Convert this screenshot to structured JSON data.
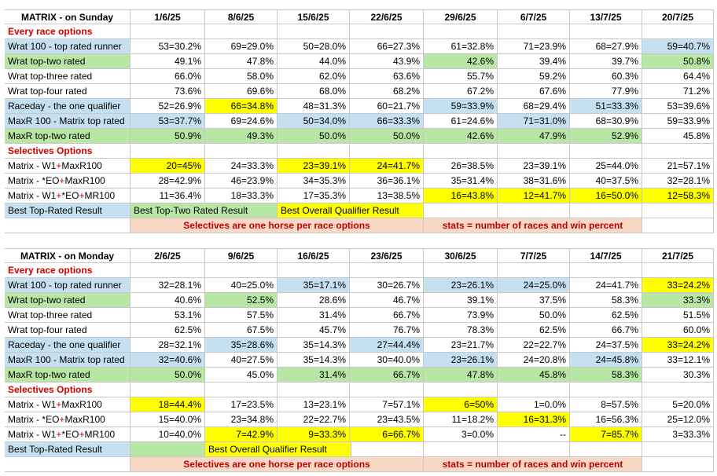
{
  "colors": {
    "blue": "#c5e0f0",
    "green": "#b8e6a4",
    "yellow": "#ffff00",
    "peach": "#f8d9c6",
    "red": "#d00000"
  },
  "sunday": {
    "title": "MATRIX - on Sunday",
    "dates": [
      "1/6/25",
      "8/6/25",
      "15/6/25",
      "22/6/25",
      "29/6/25",
      "6/7/25",
      "13/7/25",
      "20/7/25"
    ],
    "section1": "Every race options",
    "rows": [
      {
        "label": "Wrat 100 - top rated runner",
        "lc": "blue",
        "values": [
          "53=30.2%",
          "69=29.0%",
          "50=28.0%",
          "66=27.3%",
          "61=32.8%",
          "71=23.9%",
          "68=27.9%",
          "59=40.7%"
        ],
        "colors": [
          "",
          "",
          "",
          "",
          "",
          "",
          "",
          "blue"
        ]
      },
      {
        "label": "Wrat top-two rated",
        "lc": "green",
        "values": [
          "49.1%",
          "47.8%",
          "44.0%",
          "43.9%",
          "42.6%",
          "39.4%",
          "39.7%",
          "50.8%"
        ],
        "colors": [
          "",
          "",
          "",
          "",
          "green",
          "",
          "",
          "green"
        ]
      },
      {
        "label": "Wrat top-three rated",
        "lc": "",
        "values": [
          "66.0%",
          "58.0%",
          "62.0%",
          "63.6%",
          "55.7%",
          "59.2%",
          "60.3%",
          "64.4%"
        ],
        "colors": [
          "",
          "",
          "",
          "",
          "",
          "",
          "",
          ""
        ]
      },
      {
        "label": "Wrat top-four rated",
        "lc": "",
        "values": [
          "73.6%",
          "69.6%",
          "68.0%",
          "68.2%",
          "67.2%",
          "67.6%",
          "77.9%",
          "71.2%"
        ],
        "colors": [
          "",
          "",
          "",
          "",
          "",
          "",
          "",
          ""
        ]
      },
      {
        "label": "Raceday - the one qualifier",
        "lc": "blue",
        "values": [
          "52=26.9%",
          "66=34.8%",
          "48=31.3%",
          "60=21.7%",
          "59=33.9%",
          "68=29.4%",
          "51=33.3%",
          "53=39.6%"
        ],
        "colors": [
          "",
          "yellow",
          "",
          "",
          "blue",
          "",
          "blue",
          ""
        ]
      },
      {
        "label": "MaxR 100 - Matrix top rated",
        "lc": "blue",
        "values": [
          "53=37.7%",
          "69=24.6%",
          "50=34.0%",
          "66=33.3%",
          "61=24.6%",
          "71=31.0%",
          "68=30.9%",
          "59=33.9%"
        ],
        "colors": [
          "blue",
          "",
          "blue",
          "blue",
          "",
          "blue",
          "",
          ""
        ]
      },
      {
        "label": "MaxR top-two rated",
        "lc": "green",
        "values": [
          "50.9%",
          "49.3%",
          "50.0%",
          "50.0%",
          "42.6%",
          "47.9%",
          "52.9%",
          "45.8%"
        ],
        "colors": [
          "green",
          "green",
          "green",
          "green",
          "green",
          "green",
          "green",
          ""
        ]
      }
    ],
    "section2": "Selectives Options",
    "sel_rows": [
      {
        "label": "Matrix - W1+MaxR100",
        "values": [
          "20=45%",
          "24=33.3%",
          "23=39.1%",
          "24=41.7%",
          "26=38.5%",
          "23=39.1%",
          "25=44.0%",
          "21=57.1%"
        ],
        "colors": [
          "yellow",
          "",
          "yellow",
          "yellow",
          "",
          "",
          "",
          ""
        ]
      },
      {
        "label": "Matrix - *EO+MaxR100",
        "values": [
          "28=42.9%",
          "46=23.9%",
          "34=35.3%",
          "36=36.1%",
          "35=31.4%",
          "38=31.6%",
          "40=37.5%",
          "32=28.1%"
        ],
        "colors": [
          "",
          "",
          "",
          "",
          "",
          "",
          "",
          ""
        ]
      },
      {
        "label": "Matrix - W1+*EO+MR100",
        "values": [
          "11=36.4%",
          "18=33.3%",
          "17=35.3%",
          "13=38.5%",
          "16=43.8%",
          "12=41.7%",
          "16=50.0%",
          "12=58.3%"
        ],
        "colors": [
          "",
          "",
          "",
          "",
          "yellow",
          "yellow",
          "yellow",
          "yellow"
        ]
      }
    ],
    "legend": {
      "best_top_rated": "Best Top-Rated Result",
      "best_top_two": "Best Top-Two Rated Result",
      "best_overall": "Best Overall Qualifier Result"
    },
    "notes": {
      "selectives": "Selectives are one horse per race options",
      "stats": "stats = number of races and win percent"
    }
  },
  "monday": {
    "title": "MATRIX - on Monday",
    "dates": [
      "2/6/25",
      "9/6/25",
      "16/6/25",
      "23/6/25",
      "30/6/25",
      "7/7/25",
      "14/7/25",
      "21/7/25"
    ],
    "section1": "Every race options",
    "rows": [
      {
        "label": "Wrat 100 - top rated runner",
        "lc": "blue",
        "values": [
          "32=28.1%",
          "40=25.0%",
          "35=17.1%",
          "30=26.7%",
          "23=26.1%",
          "24=25.0%",
          "24=41.7%",
          "33=24.2%"
        ],
        "colors": [
          "",
          "",
          "blue",
          "",
          "blue",
          "blue",
          "",
          "yellow"
        ]
      },
      {
        "label": "Wrat top-two rated",
        "lc": "green",
        "values": [
          "40.6%",
          "52.5%",
          "28.6%",
          "46.7%",
          "39.1%",
          "37.5%",
          "58.3%",
          "33.3%"
        ],
        "colors": [
          "",
          "green",
          "",
          "",
          "",
          "",
          "",
          "green"
        ]
      },
      {
        "label": "Wrat top-three rated",
        "lc": "",
        "values": [
          "53.1%",
          "57.5%",
          "31.4%",
          "66.7%",
          "73.9%",
          "50.0%",
          "62.5%",
          "51.5%"
        ],
        "colors": [
          "",
          "",
          "",
          "",
          "",
          "",
          "",
          ""
        ]
      },
      {
        "label": "Wrat top-four rated",
        "lc": "",
        "values": [
          "62.5%",
          "67.5%",
          "45.7%",
          "76.7%",
          "78.3%",
          "62.5%",
          "66.7%",
          "60.0%"
        ],
        "colors": [
          "",
          "",
          "",
          "",
          "",
          "",
          "",
          ""
        ]
      },
      {
        "label": "Raceday - the one qualifier",
        "lc": "blue",
        "values": [
          "28=32.1%",
          "35=28.6%",
          "35=14.3%",
          "27=44.4%",
          "23=21.7%",
          "22=22.7%",
          "24=37.5%",
          "33=24.2%"
        ],
        "colors": [
          "",
          "blue",
          "",
          "blue",
          "",
          "",
          "",
          "yellow"
        ]
      },
      {
        "label": "MaxR 100 - Matrix top rated",
        "lc": "blue",
        "values": [
          "32=40.6%",
          "40=27.5%",
          "35=14.3%",
          "30=40.0%",
          "23=26.1%",
          "24=20.8%",
          "24=45.8%",
          "33=12.1%"
        ],
        "colors": [
          "blue",
          "",
          "",
          "",
          "blue",
          "",
          "blue",
          ""
        ]
      },
      {
        "label": "MaxR top-two rated",
        "lc": "green",
        "values": [
          "50.0%",
          "45.0%",
          "31.4%",
          "66.7%",
          "47.8%",
          "45.8%",
          "58.3%",
          "30.3%"
        ],
        "colors": [
          "green",
          "",
          "green",
          "green",
          "green",
          "green",
          "green",
          ""
        ]
      }
    ],
    "section2": "Selectives Options",
    "sel_rows": [
      {
        "label": "Matrix - W1+MaxR100",
        "values": [
          "18=44.4%",
          "17=23.5%",
          "13=23.1%",
          "7=57.1%",
          "6=50%",
          "1=0.0%",
          "8=57.5%",
          "5=20.0%"
        ],
        "colors": [
          "yellow",
          "",
          "",
          "",
          "yellow",
          "",
          "",
          ""
        ]
      },
      {
        "label": "Matrix - *EO+MaxR100",
        "values": [
          "15=40.0%",
          "23=34.8%",
          "22=22.7%",
          "23=43.5%",
          "11=18.2%",
          "16=31.3%",
          "16=56.3%",
          "25=12.0%"
        ],
        "colors": [
          "",
          "",
          "",
          "",
          "",
          "yellow",
          "",
          ""
        ]
      },
      {
        "label": "Matrix - W1+*EO+MR100",
        "values": [
          "10=40.0%",
          "7=42.9%",
          "9=33.3%",
          "6=66.7%",
          "3=0.0%",
          "--",
          "7=85.7%",
          "3=33.3%"
        ],
        "colors": [
          "",
          "yellow",
          "yellow",
          "yellow",
          "",
          "",
          "yellow",
          ""
        ]
      }
    ],
    "legend": {
      "best_top_rated": "Best Top-Rated Result",
      "best_overall": "Best Overall Qualifier Result"
    },
    "notes": {
      "selectives": "Selectives are one horse per race options",
      "stats": "stats = number of races and win percent"
    }
  }
}
